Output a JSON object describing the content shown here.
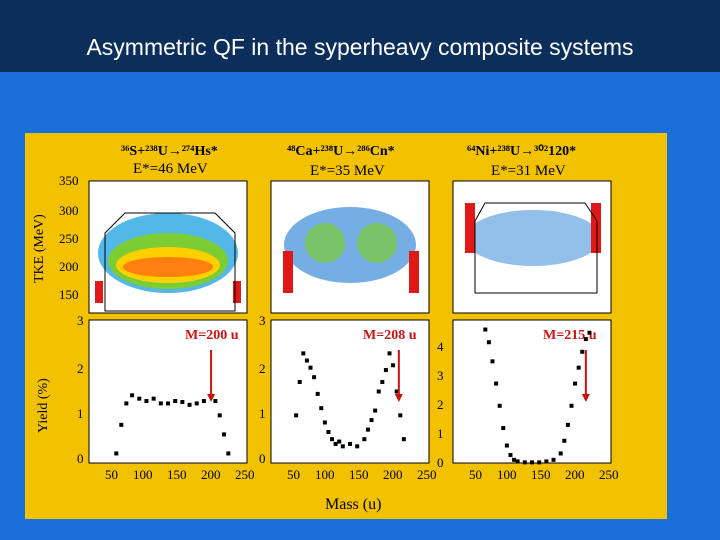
{
  "slide": {
    "title": "Asymmetric QF in the syperheavy composite systems"
  },
  "colors": {
    "background": "#1a6fd8",
    "header": "#0b2f5a",
    "figure_bg": "#f2c200",
    "mass_label": "#cc1111",
    "arrow": "#cc1111"
  },
  "figure": {
    "reactions": [
      {
        "reaction": "³⁶S+²³⁸U→²⁷⁴Hs*",
        "energy": "E*=46 MeV",
        "mass_label": "M=200 u"
      },
      {
        "reaction": "⁴⁸Ca+²³⁸U→²⁸⁶Cn*",
        "energy": "E*=35 MeV",
        "mass_label": "M=208 u"
      },
      {
        "reaction": "⁶⁴Ni+²³⁸U→³⁰²120*",
        "energy": "E*=31 MeV",
        "mass_label": "M=215 u"
      }
    ],
    "y_axis_labels": {
      "top": "TKE (MeV)",
      "bottom": "Yield (%)"
    },
    "x_axis_label": "Mass (u)",
    "top_y_ticks": [
      "350",
      "300",
      "250",
      "200",
      "150"
    ],
    "bottom_panel_ticks": [
      [
        "3",
        "2",
        "1",
        "0"
      ],
      [
        "3",
        "2",
        "1",
        "0"
      ],
      [
        "4",
        "3",
        "2",
        "1",
        "0"
      ]
    ],
    "x_ticks": [
      "50",
      "100",
      "150",
      "200",
      "250"
    ]
  },
  "chart_data": [
    {
      "type": "line",
      "panel": "S+U (274Hs)",
      "xlabel": "Mass (u)",
      "ylabel": "Yield (%)",
      "xlim": [
        30,
        250
      ],
      "ylim": [
        0,
        3
      ],
      "marker_mass": 200,
      "x": [
        68,
        75,
        82,
        90,
        100,
        110,
        120,
        130,
        140,
        150,
        160,
        170,
        180,
        190,
        200,
        206,
        212,
        218,
        224
      ],
      "y": [
        0.2,
        0.8,
        1.25,
        1.42,
        1.35,
        1.3,
        1.35,
        1.25,
        1.25,
        1.3,
        1.28,
        1.22,
        1.25,
        1.3,
        1.4,
        1.3,
        1.0,
        0.6,
        0.2
      ]
    },
    {
      "type": "line",
      "panel": "Ca+U (286Cn)",
      "xlabel": "Mass (u)",
      "ylabel": "Yield (%)",
      "xlim": [
        30,
        250
      ],
      "ylim": [
        0,
        3
      ],
      "marker_mass": 208,
      "x": [
        65,
        70,
        75,
        80,
        85,
        90,
        95,
        100,
        105,
        110,
        115,
        120,
        125,
        130,
        140,
        150,
        160,
        165,
        170,
        175,
        180,
        185,
        190,
        195,
        200,
        205,
        210,
        215
      ],
      "y": [
        1.0,
        1.7,
        2.3,
        2.15,
        2.0,
        1.8,
        1.45,
        1.15,
        0.85,
        0.65,
        0.5,
        0.4,
        0.45,
        0.35,
        0.4,
        0.35,
        0.5,
        0.7,
        0.9,
        1.1,
        1.5,
        1.7,
        1.95,
        2.3,
        2.05,
        1.5,
        1.0,
        0.5
      ]
    },
    {
      "type": "line",
      "panel": "Ni+U (302120)",
      "xlabel": "Mass (u)",
      "ylabel": "Yield (%)",
      "xlim": [
        30,
        250
      ],
      "ylim": [
        0,
        4.5
      ],
      "marker_mass": 215,
      "x": [
        75,
        80,
        85,
        90,
        95,
        100,
        105,
        110,
        115,
        120,
        130,
        140,
        150,
        160,
        170,
        180,
        185,
        190,
        195,
        200,
        205,
        210,
        215,
        220
      ],
      "y": [
        4.2,
        3.8,
        3.2,
        2.5,
        1.8,
        1.1,
        0.55,
        0.25,
        0.1,
        0.05,
        0.02,
        0.02,
        0.02,
        0.05,
        0.1,
        0.3,
        0.7,
        1.2,
        1.8,
        2.5,
        3.0,
        3.5,
        3.9,
        4.1
      ]
    }
  ]
}
